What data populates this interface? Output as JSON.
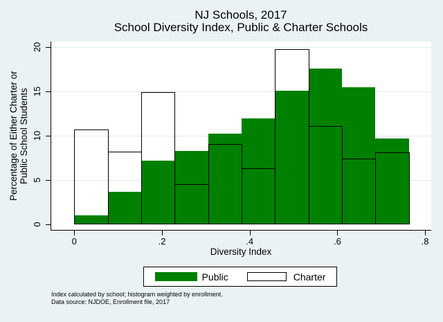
{
  "title": {
    "line1": "NJ Schools, 2017",
    "line2": "School Diversity Index, Public & Charter Schools"
  },
  "chart_data": {
    "type": "bar",
    "subtype": "overlaid-histogram",
    "title": "NJ Schools, 2017",
    "subtitle": "School Diversity Index, Public & Charter Schools",
    "xlabel": "Diversity Index",
    "ylabel": "Percentage of Either Charter or Public School Students",
    "ylabel_lines": [
      "Percentage of Either Charter or",
      "Public School Students"
    ],
    "ylim": [
      0,
      20
    ],
    "xlim": [
      0,
      0.8
    ],
    "grid": true,
    "legend_position": "bottom-center",
    "bin_width": 0.0763,
    "bins": [
      {
        "start": 0.0,
        "public": 1.0,
        "charter": 10.7
      },
      {
        "start": 0.076,
        "public": 3.7,
        "charter": 8.2
      },
      {
        "start": 0.153,
        "public": 7.2,
        "charter": 14.9
      },
      {
        "start": 0.229,
        "public": 8.3,
        "charter": 4.5
      },
      {
        "start": 0.305,
        "public": 10.2,
        "charter": 9.1
      },
      {
        "start": 0.382,
        "public": 12.0,
        "charter": 6.3
      },
      {
        "start": 0.458,
        "public": 15.1,
        "charter": 19.8
      },
      {
        "start": 0.534,
        "public": 17.6,
        "charter": 11.1
      },
      {
        "start": 0.611,
        "public": 15.5,
        "charter": 7.4
      },
      {
        "start": 0.687,
        "public": 9.7,
        "charter": 8.1
      }
    ],
    "series": [
      {
        "name": "Public",
        "style": "filled",
        "color": "#008000"
      },
      {
        "name": "Charter",
        "style": "outline",
        "color": "#000000"
      }
    ],
    "x_ticks": [
      {
        "value": 0.0,
        "label": "0"
      },
      {
        "value": 0.2,
        "label": ".2"
      },
      {
        "value": 0.4,
        "label": ".4"
      },
      {
        "value": 0.6,
        "label": ".6"
      },
      {
        "value": 0.8,
        "label": ".8"
      }
    ],
    "y_ticks": [
      {
        "value": 0,
        "label": "0"
      },
      {
        "value": 5,
        "label": "5"
      },
      {
        "value": 10,
        "label": "10"
      },
      {
        "value": 15,
        "label": "15"
      },
      {
        "value": 20,
        "label": "20"
      }
    ]
  },
  "legend": {
    "public_label": "Public",
    "charter_label": "Charter"
  },
  "notes": {
    "line1": "Index calculated by school; histogram weighted by enrollment.",
    "line2": "Data source: NJDOE, Enrollment file, 2017"
  },
  "colors": {
    "background": "#eaf2f3",
    "plot_background": "#ffffff",
    "public_fill": "#008000",
    "charter_outline": "#000000",
    "gridline": "#e0ecef"
  }
}
